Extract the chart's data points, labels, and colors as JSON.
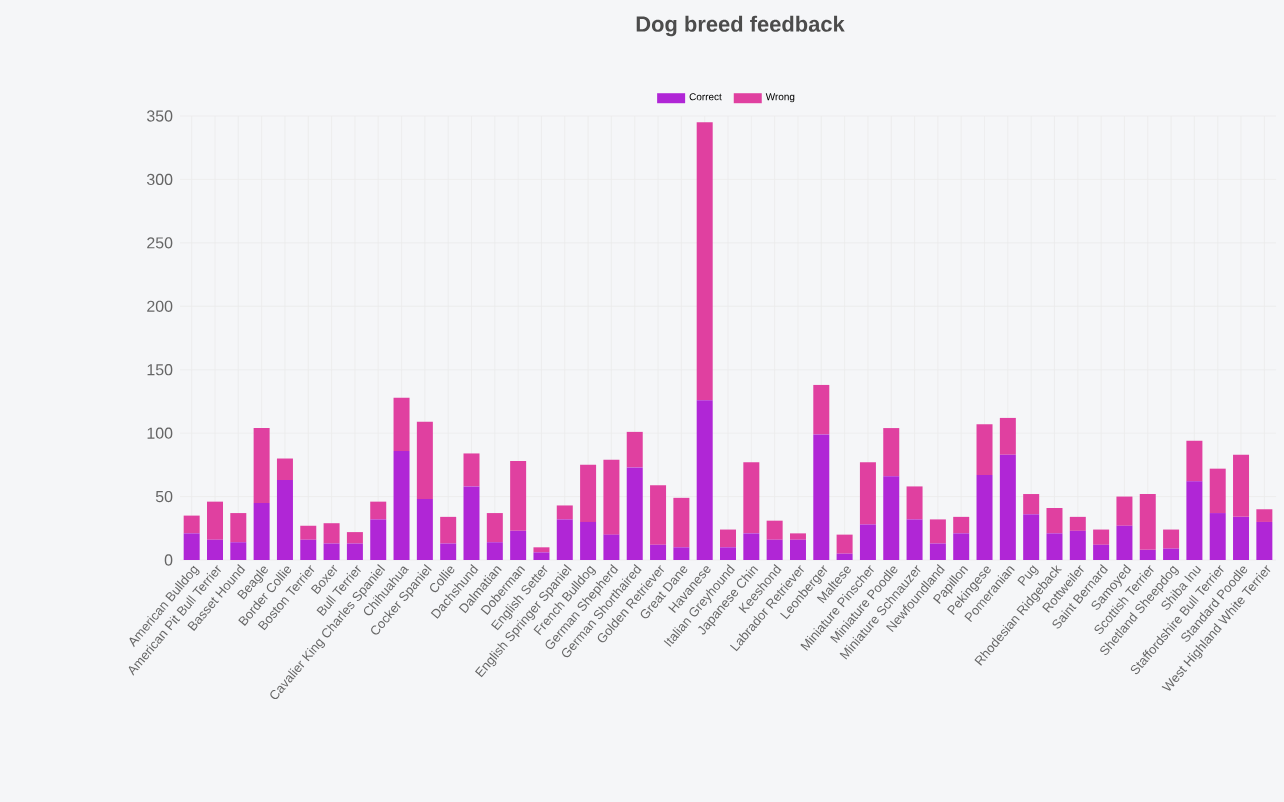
{
  "chart_data": {
    "type": "bar",
    "title": "Dog breed feedback",
    "stacked": true,
    "legend": "top",
    "grid": true,
    "categories": [
      "American Bulldog",
      "American Pit Bull Terrier",
      "Basset Hound",
      "Beagle",
      "Border Collie",
      "Boston Terrier",
      "Boxer",
      "Bull Terrier",
      "Cavalier King Charles Spaniel",
      "Chihuahua",
      "Cocker Spaniel",
      "Collie",
      "Dachshund",
      "Dalmatian",
      "Doberman",
      "English Setter",
      "English Springer Spaniel",
      "French Bulldog",
      "German Shepherd",
      "German Shorthaired",
      "Golden Retriever",
      "Great Dane",
      "Havanese",
      "Italian Greyhound",
      "Japanese Chin",
      "Keeshond",
      "Labrador Retriever",
      "Leonberger",
      "Maltese",
      "Miniature Pinscher",
      "Miniature Poodle",
      "Miniature Schnauzer",
      "Newfoundland",
      "Papillon",
      "Pekingese",
      "Pomeranian",
      "Pug",
      "Rhodesian Ridgeback",
      "Rottweiler",
      "Saint Bernard",
      "Samoyed",
      "Scottish Terrier",
      "Shetland Sheepdog",
      "Shiba Inu",
      "Staffordshire Bull Terrier",
      "Standard Poodle",
      "West Highland White Terrier"
    ],
    "series": [
      {
        "name": "Correct",
        "color": "#b026d6",
        "values": [
          21,
          16,
          14,
          45,
          63,
          16,
          13,
          13,
          32,
          86,
          48,
          13,
          58,
          14,
          23,
          6,
          32,
          30,
          20,
          73,
          12,
          10,
          126,
          10,
          21,
          16,
          16,
          99,
          5,
          28,
          66,
          32,
          13,
          21,
          67,
          83,
          36,
          21,
          23,
          12,
          27,
          8,
          9,
          62,
          37,
          34,
          30
        ]
      },
      {
        "name": "Wrong",
        "color": "#e040a0",
        "values": [
          14,
          30,
          23,
          59,
          17,
          11,
          16,
          9,
          14,
          42,
          61,
          21,
          26,
          23,
          55,
          4,
          11,
          45,
          59,
          28,
          47,
          39,
          219,
          14,
          56,
          15,
          5,
          39,
          15,
          49,
          38,
          26,
          19,
          13,
          40,
          29,
          16,
          20,
          11,
          12,
          23,
          44,
          15,
          32,
          35,
          49,
          10
        ]
      }
    ],
    "ylim": [
      0,
      350
    ],
    "yticks": [
      0,
      50,
      100,
      150,
      200,
      250,
      300,
      350
    ]
  }
}
